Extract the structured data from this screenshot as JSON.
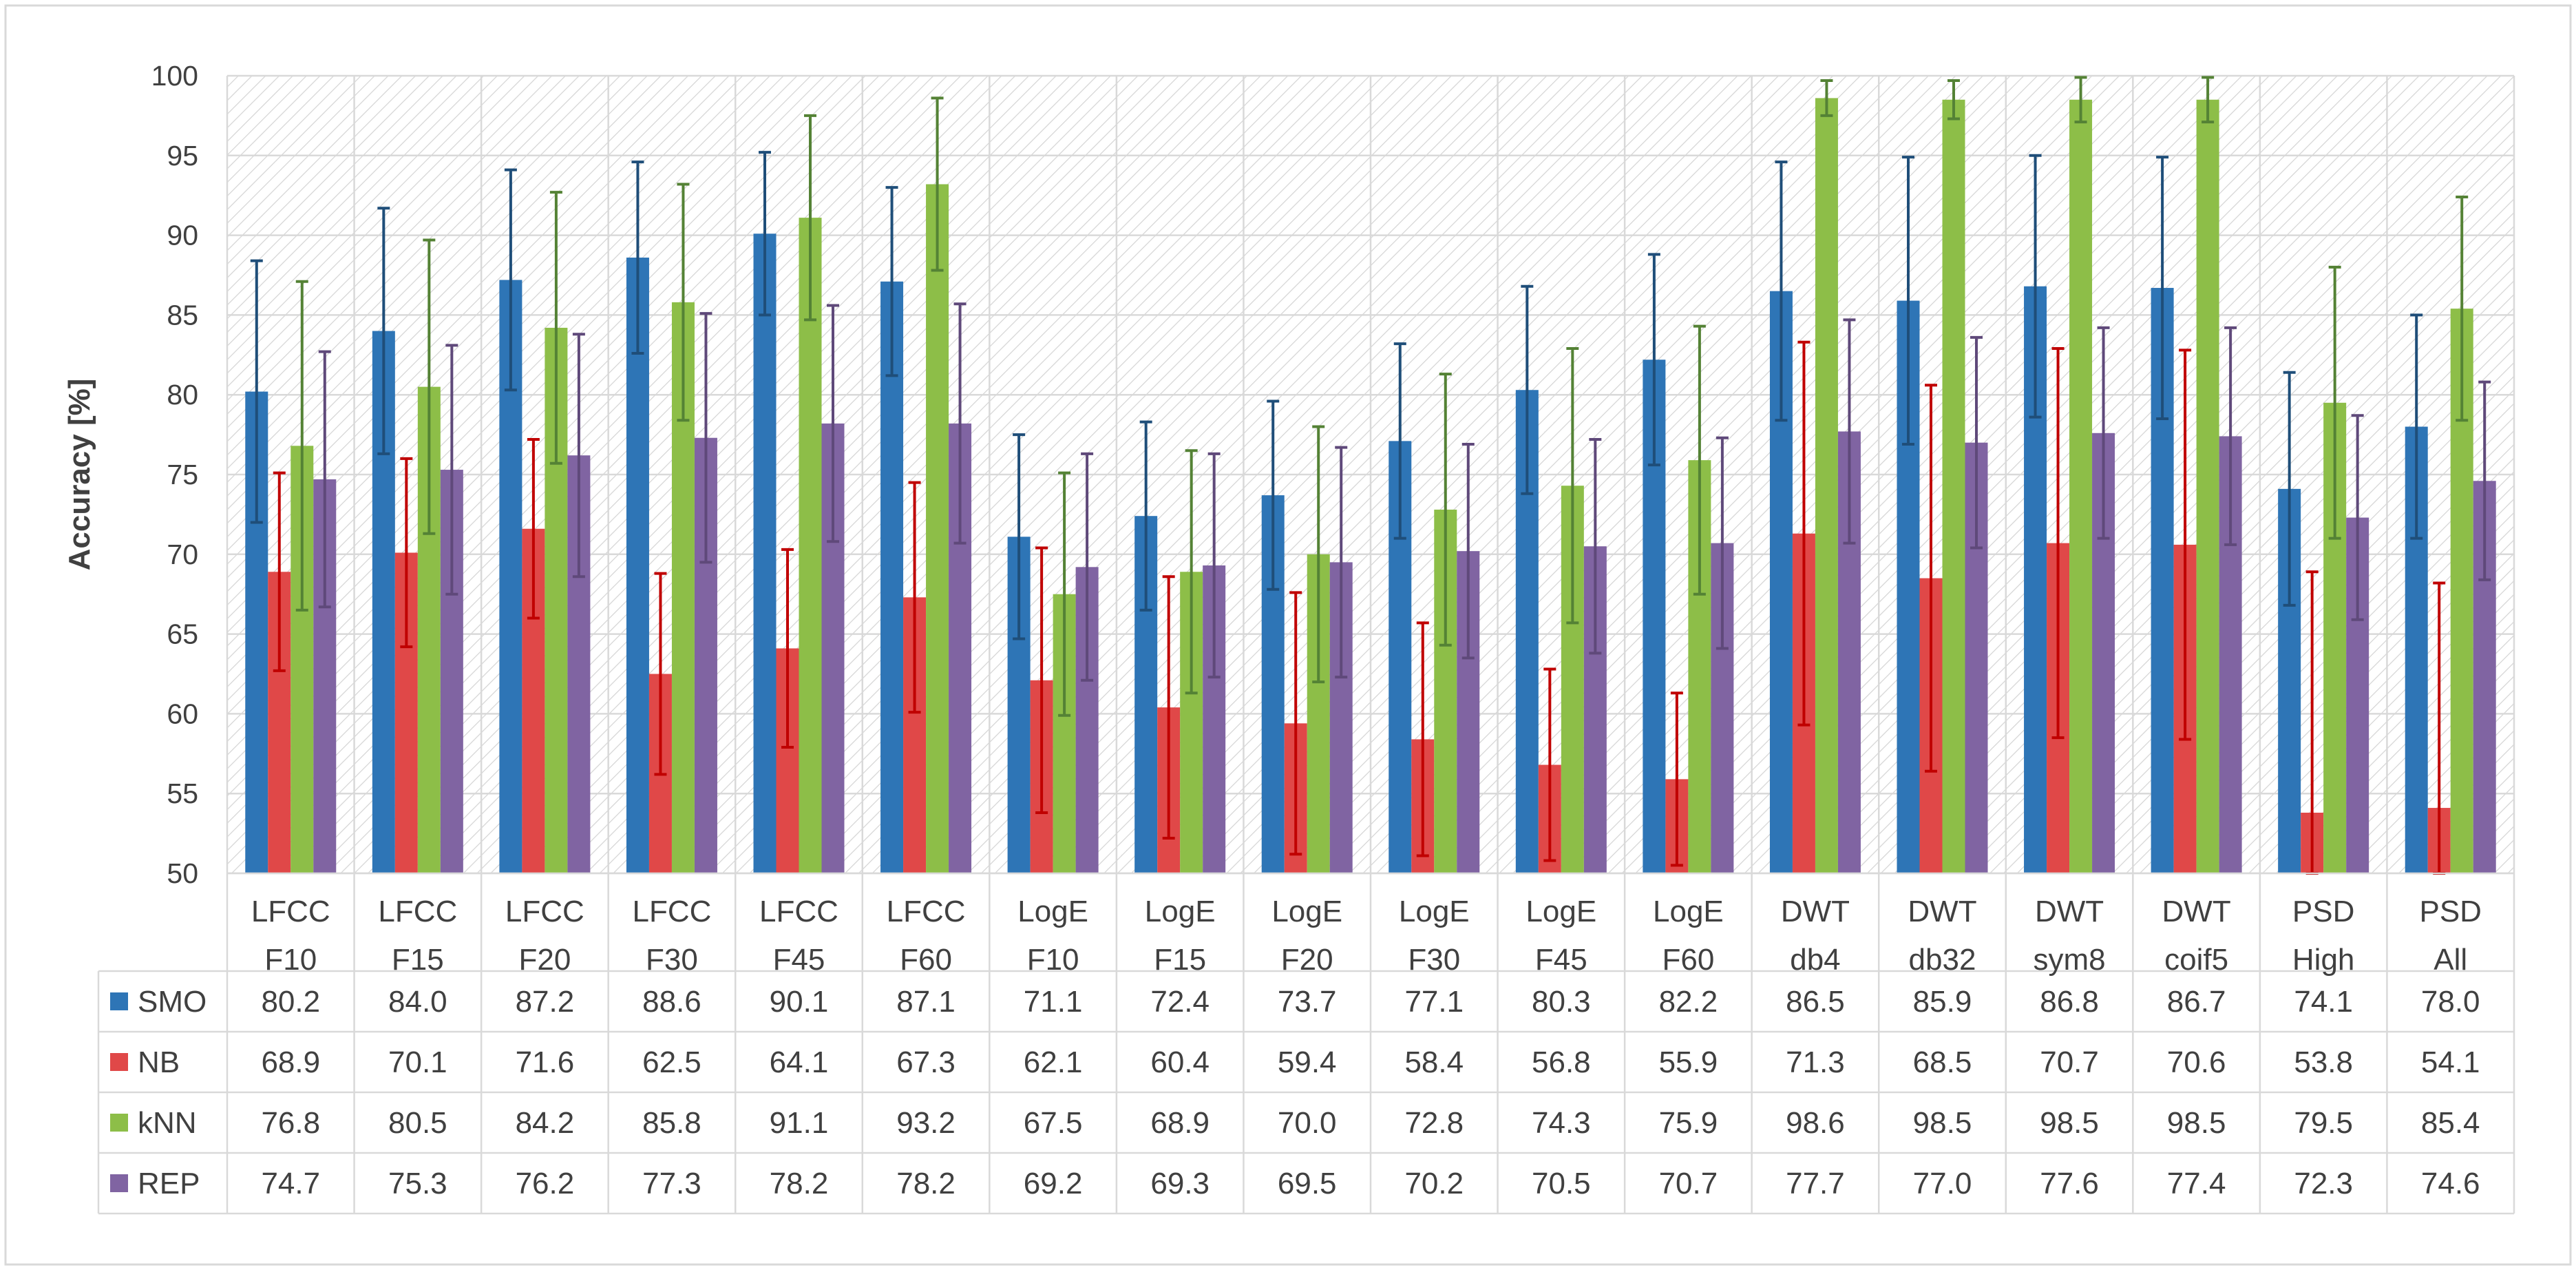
{
  "chart_data": {
    "type": "bar",
    "title": "",
    "ylabel": "Accuracy [%]",
    "xlabel": "",
    "ylim": [
      50,
      100
    ],
    "y_ticks": [
      "50",
      "55",
      "60",
      "65",
      "70",
      "75",
      "80",
      "85",
      "90",
      "95",
      "100"
    ],
    "grid": true,
    "legend": "left-table",
    "categories": [
      [
        "LFCC",
        "F10"
      ],
      [
        "LFCC",
        "F15"
      ],
      [
        "LFCC",
        "F20"
      ],
      [
        "LFCC",
        "F30"
      ],
      [
        "LFCC",
        "F45"
      ],
      [
        "LFCC",
        "F60"
      ],
      [
        "LogE",
        "F10"
      ],
      [
        "LogE",
        "F15"
      ],
      [
        "LogE",
        "F20"
      ],
      [
        "LogE",
        "F30"
      ],
      [
        "LogE",
        "F45"
      ],
      [
        "LogE",
        "F60"
      ],
      [
        "DWT",
        "db4"
      ],
      [
        "DWT",
        "db32"
      ],
      [
        "DWT",
        "sym8"
      ],
      [
        "DWT",
        "coif5"
      ],
      [
        "PSD",
        "High"
      ],
      [
        "PSD",
        "All"
      ]
    ],
    "series": [
      {
        "name": "SMO",
        "color": "#2E75B6",
        "error_color": "#1F4E79",
        "values": [
          80.2,
          84.0,
          87.2,
          88.6,
          90.1,
          87.1,
          71.1,
          72.4,
          73.7,
          77.1,
          80.3,
          82.2,
          86.5,
          85.9,
          86.8,
          86.7,
          74.1,
          78.0
        ],
        "labels": [
          "80.2",
          "84.0",
          "87.2",
          "88.6",
          "90.1",
          "87.1",
          "71.1",
          "72.4",
          "73.7",
          "77.1",
          "80.3",
          "82.2",
          "86.5",
          "85.9",
          "86.8",
          "86.7",
          "74.1",
          "78.0"
        ],
        "errors": [
          8.2,
          7.7,
          6.9,
          6.0,
          5.1,
          5.9,
          6.4,
          5.9,
          5.9,
          6.1,
          6.5,
          6.6,
          8.1,
          9.0,
          8.2,
          8.2,
          7.3,
          7.0
        ]
      },
      {
        "name": "NB",
        "color": "#E04848",
        "error_color": "#C00000",
        "values": [
          68.9,
          70.1,
          71.6,
          62.5,
          64.1,
          67.3,
          62.1,
          60.4,
          59.4,
          58.4,
          56.8,
          55.9,
          71.3,
          68.5,
          70.7,
          70.6,
          53.8,
          54.1
        ],
        "labels": [
          "68.9",
          "70.1",
          "71.6",
          "62.5",
          "64.1",
          "67.3",
          "62.1",
          "60.4",
          "59.4",
          "58.4",
          "56.8",
          "55.9",
          "71.3",
          "68.5",
          "70.7",
          "70.6",
          "53.8",
          "54.1"
        ],
        "errors": [
          6.2,
          5.9,
          5.6,
          6.3,
          6.2,
          7.2,
          8.3,
          8.2,
          8.2,
          7.3,
          6.0,
          5.4,
          12.0,
          12.1,
          12.2,
          12.2,
          15.1,
          14.1
        ]
      },
      {
        "name": "kNN",
        "color": "#8DBE48",
        "error_color": "#548235",
        "values": [
          76.8,
          80.5,
          84.2,
          85.8,
          91.1,
          93.2,
          67.5,
          68.9,
          70.0,
          72.8,
          74.3,
          75.9,
          98.6,
          98.5,
          98.5,
          98.5,
          79.5,
          85.4
        ],
        "labels": [
          "76.8",
          "80.5",
          "84.2",
          "85.8",
          "91.1",
          "93.2",
          "67.5",
          "68.9",
          "70.0",
          "72.8",
          "74.3",
          "75.9",
          "98.6",
          "98.5",
          "98.5",
          "98.5",
          "79.5",
          "85.4"
        ],
        "errors": [
          10.3,
          9.2,
          8.5,
          7.4,
          6.4,
          5.4,
          7.6,
          7.6,
          8.0,
          8.5,
          8.6,
          8.4,
          1.1,
          1.2,
          1.4,
          1.4,
          8.5,
          7.0
        ]
      },
      {
        "name": "REP",
        "color": "#8064A2",
        "error_color": "#5F497A",
        "values": [
          74.7,
          75.3,
          76.2,
          77.3,
          78.2,
          78.2,
          69.2,
          69.3,
          69.5,
          70.2,
          70.5,
          70.7,
          77.7,
          77.0,
          77.6,
          77.4,
          72.3,
          74.6
        ],
        "labels": [
          "74.7",
          "75.3",
          "76.2",
          "77.3",
          "78.2",
          "78.2",
          "69.2",
          "69.3",
          "69.5",
          "70.2",
          "70.5",
          "70.7",
          "77.7",
          "77.0",
          "77.6",
          "77.4",
          "72.3",
          "74.6"
        ],
        "errors": [
          8.0,
          7.8,
          7.6,
          7.8,
          7.4,
          7.5,
          7.1,
          7.0,
          7.2,
          6.7,
          6.7,
          6.6,
          7.0,
          6.6,
          6.6,
          6.8,
          6.4,
          6.2
        ]
      }
    ]
  }
}
